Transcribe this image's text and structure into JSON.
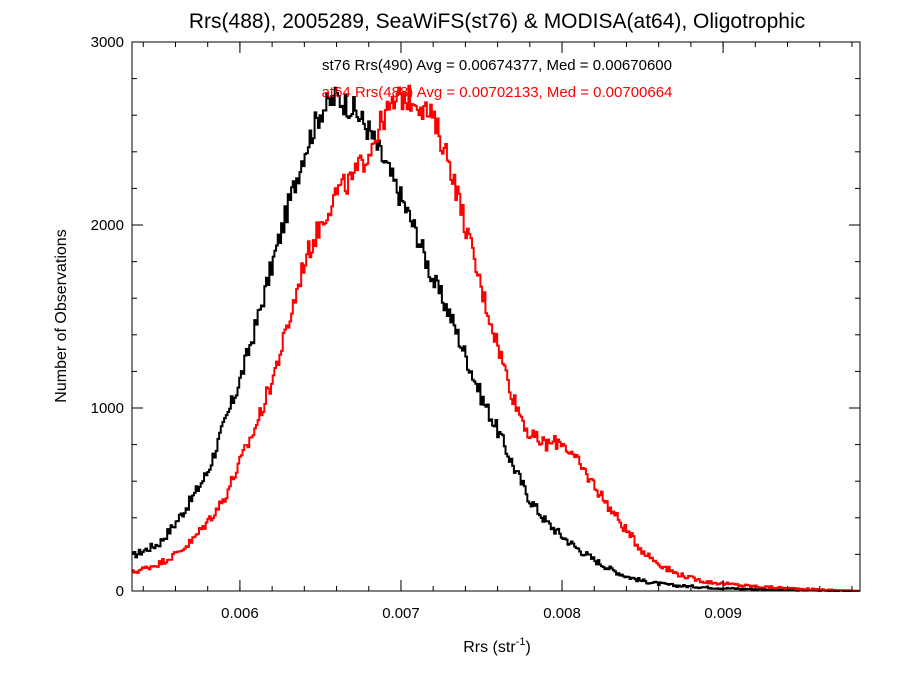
{
  "chart_data": {
    "type": "line",
    "step": true,
    "title": "Rrs(488), 2005289, SeaWiFS(st76) & MODISA(at64), Oligotrophic",
    "xlabel": "Rrs (str",
    "xlabel_sup": "-1",
    "xlabel_close": ")",
    "ylabel": "Number of Observations",
    "xlim": [
      0.00533,
      0.00985
    ],
    "ylim": [
      0,
      3000
    ],
    "xticks": [
      0.006,
      0.007,
      0.008,
      0.009
    ],
    "xtick_labels": [
      "0.006",
      "0.007",
      "0.008",
      "0.009"
    ],
    "yticks": [
      0,
      1000,
      2000,
      3000
    ],
    "ytick_labels": [
      "0",
      "1000",
      "2000",
      "3000"
    ],
    "x_minor_step": 0.0002,
    "y_minor_step": 200,
    "grid": false,
    "annotations": [
      {
        "text": "st76 Rrs(490) Avg = 0.00674377, Med = 0.00670600",
        "color": "#000000",
        "series": "st76"
      },
      {
        "text": "at64 Rrs(488) Avg = 0.00702133, Med = 0.00700664",
        "color": "#ff0000",
        "series": "at64"
      }
    ],
    "series": [
      {
        "id": "st76",
        "color": "#000000",
        "x": [
          0.00533,
          0.0055,
          0.0056,
          0.0057,
          0.0058,
          0.0059,
          0.006,
          0.0061,
          0.0062,
          0.0063,
          0.0064,
          0.0065,
          0.0066,
          0.0067,
          0.0068,
          0.0069,
          0.007,
          0.0071,
          0.0072,
          0.0073,
          0.0074,
          0.0075,
          0.0076,
          0.0077,
          0.0078,
          0.0079,
          0.008,
          0.0081,
          0.0082,
          0.0083,
          0.0084,
          0.0085,
          0.0086,
          0.0087,
          0.0088,
          0.0089,
          0.009,
          0.0092,
          0.0094,
          0.0096,
          0.00985
        ],
        "values": [
          190,
          260,
          370,
          500,
          650,
          900,
          1150,
          1450,
          1780,
          2100,
          2400,
          2620,
          2700,
          2640,
          2520,
          2340,
          2150,
          1950,
          1700,
          1520,
          1290,
          1060,
          880,
          680,
          500,
          380,
          300,
          230,
          170,
          120,
          80,
          55,
          40,
          30,
          25,
          20,
          15,
          10,
          5,
          3,
          0
        ]
      },
      {
        "id": "at64",
        "color": "#ff0000",
        "x": [
          0.00533,
          0.0055,
          0.0056,
          0.0057,
          0.0058,
          0.0059,
          0.006,
          0.0061,
          0.0062,
          0.0063,
          0.0064,
          0.0065,
          0.0066,
          0.0067,
          0.0068,
          0.0069,
          0.007,
          0.0071,
          0.0072,
          0.0073,
          0.0074,
          0.0075,
          0.0076,
          0.0077,
          0.0078,
          0.0079,
          0.008,
          0.0081,
          0.0082,
          0.0083,
          0.0084,
          0.0085,
          0.0086,
          0.0087,
          0.0088,
          0.0089,
          0.009,
          0.0092,
          0.0094,
          0.0096,
          0.00985
        ],
        "values": [
          100,
          150,
          200,
          270,
          380,
          500,
          700,
          900,
          1150,
          1450,
          1800,
          2000,
          2180,
          2250,
          2400,
          2600,
          2700,
          2680,
          2580,
          2350,
          2000,
          1650,
          1350,
          1050,
          850,
          800,
          820,
          700,
          580,
          450,
          330,
          220,
          150,
          100,
          70,
          50,
          40,
          25,
          15,
          8,
          0
        ]
      }
    ]
  }
}
